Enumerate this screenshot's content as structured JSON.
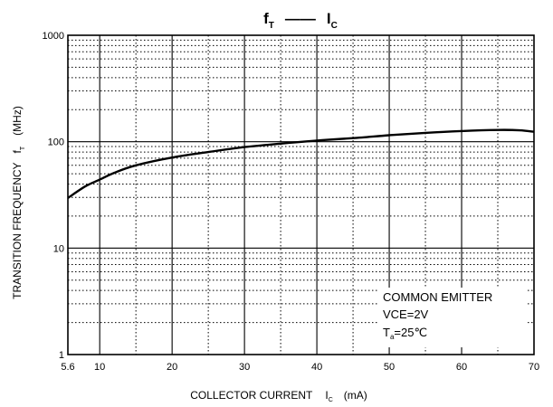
{
  "chart_data": {
    "type": "line",
    "title": {
      "f": "f",
      "f_sub": "T",
      "dash": "——",
      "i": "I",
      "i_sub": "C"
    },
    "ylabel": {
      "main": "TRANSITION FREQUENCY",
      "sym": "f",
      "sym_sub": "T",
      "unit": "(MHz)"
    },
    "xlabel": {
      "main": "COLLECTOR CURRENT",
      "sym": "I",
      "sym_sub": "C",
      "unit": "(mA)"
    },
    "x_ticks": [
      "5.6",
      "10",
      "20",
      "30",
      "40",
      "50",
      "60",
      "70"
    ],
    "y_ticks": [
      "1",
      "10",
      "100",
      "1000"
    ],
    "xlim": [
      5.6,
      70
    ],
    "ylim": [
      1,
      1000
    ],
    "y_scale": "log",
    "grid": true,
    "annotation": {
      "line1": "COMMON EMITTER",
      "line2": "VCE=2V",
      "line3_a": "T",
      "line3_sub": "a",
      "line3_b": "=25℃"
    },
    "series": [
      {
        "color": "#000000",
        "x": [
          5.6,
          8,
          10,
          12,
          15,
          20,
          25,
          30,
          35,
          40,
          45,
          50,
          55,
          60,
          65,
          68,
          70
        ],
        "y": [
          29.6,
          38,
          44,
          51,
          60,
          71,
          80,
          89,
          96,
          102.5,
          108,
          115,
          121,
          126,
          129,
          128,
          124
        ]
      }
    ]
  }
}
